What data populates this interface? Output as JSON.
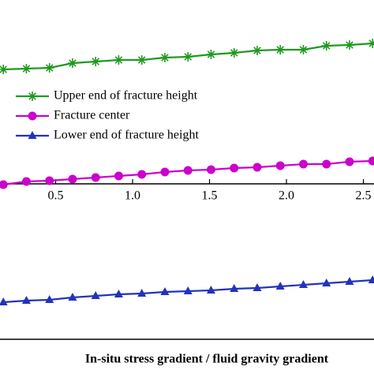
{
  "chart_data": {
    "type": "line",
    "xlabel": "In-situ stress gradient / fluid gravity gradient",
    "x": [
      0.16,
      0.31,
      0.46,
      0.61,
      0.76,
      0.91,
      1.06,
      1.21,
      1.36,
      1.51,
      1.66,
      1.81,
      1.96,
      2.11,
      2.26,
      2.41,
      2.56
    ],
    "xlim": [
      0.1385,
      2.569
    ],
    "xticks": [
      0.5,
      {
        "value": 1.0,
        "label": "1.0"
      },
      1.5,
      {
        "value": 2.0,
        "label": "2.0"
      },
      2.5
    ],
    "ylim": [
      -1.97,
      2.33
    ],
    "legend": "upper-left",
    "series": [
      {
        "name": "Upper end of fracture height",
        "color": "#1f9a1f",
        "marker": "asterisk",
        "values": [
          1.45,
          1.46,
          1.47,
          1.53,
          1.55,
          1.57,
          1.57,
          1.6,
          1.61,
          1.64,
          1.66,
          1.69,
          1.7,
          1.7,
          1.75,
          1.76,
          1.78
        ]
      },
      {
        "name": "Fracture center",
        "color": "#cc00cc",
        "marker": "circle",
        "values": [
          -0.01,
          0.03,
          0.04,
          0.06,
          0.08,
          0.1,
          0.12,
          0.15,
          0.17,
          0.18,
          0.2,
          0.21,
          0.23,
          0.25,
          0.25,
          0.28,
          0.29
        ]
      },
      {
        "name": "Lower end of fracture height",
        "color": "#2233bb",
        "marker": "triangle",
        "values": [
          -1.5,
          -1.48,
          -1.47,
          -1.44,
          -1.42,
          -1.4,
          -1.39,
          -1.37,
          -1.36,
          -1.35,
          -1.33,
          -1.32,
          -1.3,
          -1.28,
          -1.26,
          -1.24,
          -1.22
        ]
      }
    ]
  }
}
